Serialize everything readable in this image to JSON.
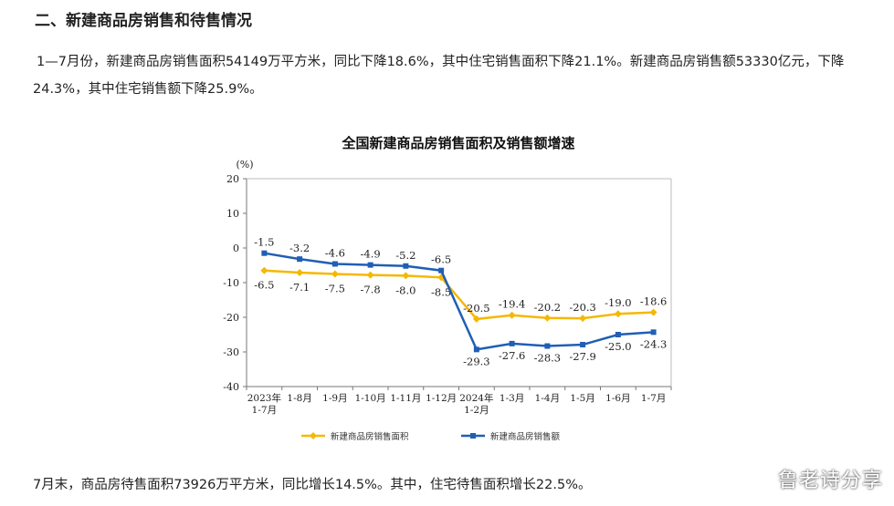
{
  "article": {
    "section_heading": "二、新建商品房销售和待售情况",
    "paragraph": "1—7月份，新建商品房销售面积54149万平方米，同比下降18.6%，其中住宅销售面积下降21.1%。新建商品房销售额53330亿元，下降24.3%，其中住宅销售额下降25.9%。",
    "footer_paragraph": "7月末，商品房待售面积73926万平方米，同比增长14.5%。其中，住宅待售面积增长22.5%。",
    "watermark": "鲁老诗分享"
  },
  "chart_data": {
    "type": "line",
    "title": "全国新建商品房销售面积及销售额增速",
    "ylabel": "(%)",
    "ylim": [
      -40,
      20
    ],
    "yticks": [
      20,
      10,
      0,
      -10,
      -20,
      -30,
      -40
    ],
    "grid": false,
    "legend_position": "bottom",
    "categories": [
      [
        "2023年",
        "1-7月"
      ],
      [
        "1-8月"
      ],
      [
        "1-9月"
      ],
      [
        "1-10月"
      ],
      [
        "1-11月"
      ],
      [
        "1-12月"
      ],
      [
        "2024年",
        "1-2月"
      ],
      [
        "1-3月"
      ],
      [
        "1-4月"
      ],
      [
        "1-5月"
      ],
      [
        "1-6月"
      ],
      [
        "1-7月"
      ]
    ],
    "series": [
      {
        "name": "新建商品房销售面积",
        "color": "#f5b800",
        "marker": "diamond",
        "values": [
          -6.5,
          -7.1,
          -7.5,
          -7.8,
          -8.0,
          -8.5,
          -20.5,
          -19.4,
          -20.2,
          -20.3,
          -19.0,
          -18.6
        ],
        "labels": [
          "-6.5",
          "-7.1",
          "-7.5",
          "-7.8",
          "-8.0",
          "-8.5",
          "-20.5",
          "-19.4",
          "-20.2",
          "-20.3",
          "-19.0",
          "-18.6"
        ]
      },
      {
        "name": "新建商品房销售额",
        "color": "#1f5fb4",
        "marker": "square",
        "values": [
          -1.5,
          -3.2,
          -4.6,
          -4.9,
          -5.2,
          -6.5,
          -29.3,
          -27.6,
          -28.3,
          -27.9,
          -25.0,
          -24.3
        ],
        "labels": [
          "-1.5",
          "-3.2",
          "-4.6",
          "-4.9",
          "-5.2",
          "-6.5",
          "-29.3",
          "-27.6",
          "-28.3",
          "-27.9",
          "-25.0",
          "-24.3"
        ]
      }
    ]
  }
}
